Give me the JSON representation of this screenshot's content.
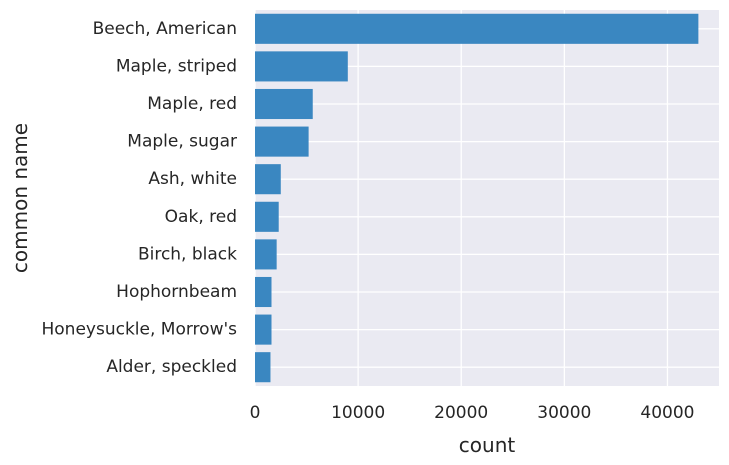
{
  "chart_data": {
    "type": "bar",
    "orientation": "horizontal",
    "title": "",
    "xlabel": "count",
    "ylabel": "common name",
    "categories": [
      "Beech, American",
      "Maple, striped",
      "Maple, red",
      "Maple, sugar",
      "Ash, white",
      "Oak, red",
      "Birch, black",
      "Hophornbeam",
      "Honeysuckle, Morrow's",
      "Alder, speckled"
    ],
    "values": [
      43000,
      9000,
      5600,
      5200,
      2500,
      2300,
      2100,
      1600,
      1600,
      1500
    ],
    "xlim": [
      0,
      45000
    ],
    "xticks": [
      0,
      10000,
      20000,
      30000,
      40000
    ],
    "xtick_labels": [
      "0",
      "10000",
      "20000",
      "30000",
      "40000"
    ],
    "grid": true,
    "legend": "none",
    "colors": {
      "bar": "#3a87c1",
      "background": "#eaeaf2",
      "grid": "#ffffff",
      "text": "#262626"
    }
  }
}
